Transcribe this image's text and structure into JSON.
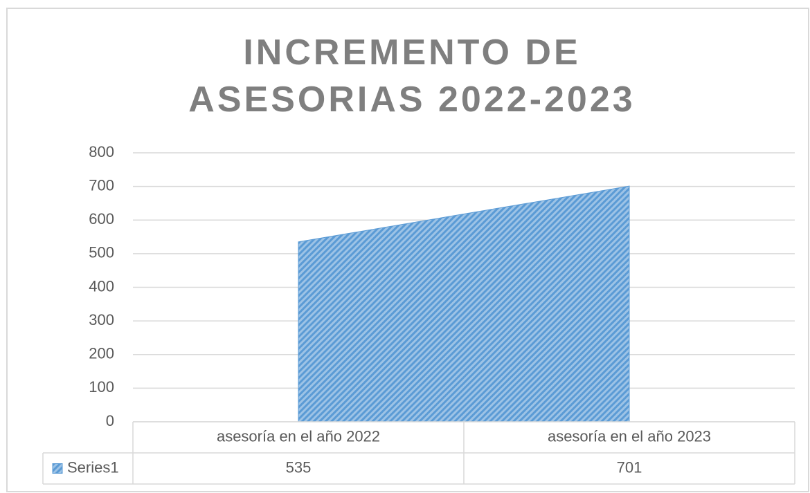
{
  "chart_data": {
    "type": "area",
    "title": "INCREMENTO DE ASESORIAS 2022-2023",
    "categories": [
      "asesoría en el año 2022",
      "asesoría en el año 2023"
    ],
    "series": [
      {
        "name": "Series1",
        "color": "#5b9bd5",
        "values": [
          535,
          701
        ]
      }
    ],
    "ylim": [
      0,
      800
    ],
    "yticks": [
      0,
      100,
      200,
      300,
      400,
      500,
      600,
      700,
      800
    ],
    "grid": true
  }
}
